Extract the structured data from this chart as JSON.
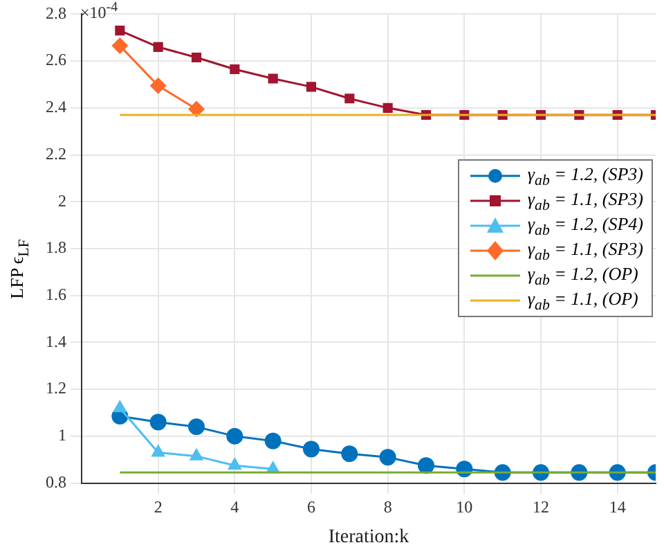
{
  "chart_data": {
    "type": "line",
    "xlabel": "Iteration:k",
    "ylabel": "LFP ϵ$_{LF}$",
    "annotations": [
      "×10$^{-4}$"
    ],
    "xlim": [
      0,
      15
    ],
    "xticks": [
      2,
      4,
      6,
      8,
      10,
      12,
      14
    ],
    "ylim": [
      0.8,
      2.8
    ],
    "yticks": [
      0.8,
      1,
      1.2,
      1.4,
      1.6,
      1.8,
      2,
      2.2,
      2.4,
      2.6,
      2.8
    ],
    "grid": true,
    "legend": "right",
    "series": [
      {
        "name": "γ$_{ab}$ = 1.2, (SP3)",
        "color": "#0072bd",
        "marker": "circle",
        "x": [
          1,
          2,
          3,
          4,
          5,
          6,
          7,
          8,
          9,
          10,
          11,
          12,
          13,
          14,
          15
        ],
        "values": [
          1.085,
          1.06,
          1.04,
          1.0,
          0.98,
          0.945,
          0.925,
          0.91,
          0.875,
          0.86,
          0.845,
          0.845,
          0.845,
          0.845,
          0.845
        ]
      },
      {
        "name": "γ$_{ab}$ = 1.1, (SP3)",
        "color": "#a2142f",
        "marker": "square",
        "x": [
          1,
          2,
          3,
          4,
          5,
          6,
          7,
          8,
          9,
          10,
          11,
          12,
          13,
          14,
          15
        ],
        "values": [
          2.73,
          2.66,
          2.615,
          2.565,
          2.525,
          2.49,
          2.44,
          2.4,
          2.37,
          2.37,
          2.37,
          2.37,
          2.37,
          2.37,
          2.37
        ]
      },
      {
        "name": "γ$_{ab}$ = 1.2, (SP4)",
        "color": "#4dbeee",
        "marker": "triangle",
        "x": [
          1,
          2,
          3,
          4,
          5
        ],
        "values": [
          1.12,
          0.93,
          0.915,
          0.875,
          0.86
        ]
      },
      {
        "name": "γ$_{ab}$ = 1.1, (SP3)",
        "color": "#ff6929",
        "marker": "diamond",
        "x": [
          1,
          2,
          3
        ],
        "values": [
          2.665,
          2.495,
          2.395
        ]
      },
      {
        "name": "γ$_{ab}$ = 1.2, (OP)",
        "color": "#77ac30",
        "marker": "none",
        "x": [
          1,
          15
        ],
        "values": [
          0.845,
          0.845
        ]
      },
      {
        "name": "γ$_{ab}$ = 1.1, (OP)",
        "color": "#edb120",
        "marker": "none",
        "x": [
          1,
          15
        ],
        "values": [
          2.37,
          2.37
        ]
      }
    ]
  }
}
